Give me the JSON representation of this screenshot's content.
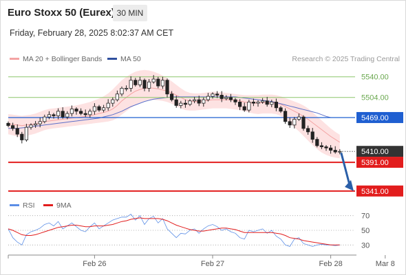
{
  "header": {
    "instrument": "Euro Stoxx 50 (Eurex)",
    "timeframe": "30 MIN",
    "datetime": "Friday, February 28, 2025 8:02:37 AM CET"
  },
  "legend": {
    "bollinger": "MA 20 + Bollinger Bands",
    "ma50": "MA 50",
    "copyright": "Research © 2025 Trading Central",
    "rsi": "RSI",
    "rsi_ma": "9MA"
  },
  "colors": {
    "bollinger_fill": "#fde2e2",
    "ma20": "#f4a3a3",
    "ma50": "#5b6fc9",
    "bull_candle": "#ffffff",
    "bear_candle": "#222222",
    "support_red": "#e21d1d",
    "pivot_blue": "#1f5fd1",
    "resistance_green": "#8cc56a",
    "current_price_bg": "#333333",
    "rsi_line": "#5b8ee6",
    "rsi_ma_line": "#e21d1d",
    "arrow": "#2a5fa8"
  },
  "chart_data": [
    {
      "type": "candlestick",
      "title": "Euro Stoxx 50 (Eurex)",
      "price_ylim": [
        5330,
        5560
      ],
      "levels": [
        {
          "label": "5540.00",
          "value": 5540.0,
          "kind": "resistance"
        },
        {
          "label": "5504.00",
          "value": 5504.0,
          "kind": "resistance"
        },
        {
          "label": "5469.00",
          "value": 5469.0,
          "kind": "pivot"
        },
        {
          "label": "5410.00",
          "value": 5410.0,
          "kind": "current"
        },
        {
          "label": "5391.00",
          "value": 5391.0,
          "kind": "support"
        },
        {
          "label": "5341.00",
          "value": 5341.0,
          "kind": "support"
        }
      ],
      "x_ticks": [
        "Feb 26",
        "Feb 27",
        "Feb 28",
        "Mar 8"
      ],
      "x_tick_bar_index": [
        19,
        45,
        71,
        83
      ],
      "forecast_arrow": {
        "from": 5410,
        "to": 5341
      },
      "close": [
        5455,
        5450,
        5440,
        5430,
        5452,
        5456,
        5458,
        5462,
        5470,
        5474,
        5472,
        5480,
        5470,
        5476,
        5484,
        5480,
        5476,
        5474,
        5480,
        5488,
        5482,
        5486,
        5494,
        5500,
        5510,
        5520,
        5520,
        5534,
        5526,
        5534,
        5520,
        5531,
        5536,
        5524,
        5534,
        5510,
        5500,
        5490,
        5494,
        5492,
        5498,
        5500,
        5494,
        5500,
        5506,
        5510,
        5508,
        5502,
        5504,
        5500,
        5496,
        5488,
        5482,
        5496,
        5494,
        5496,
        5498,
        5492,
        5496,
        5486,
        5480,
        5462,
        5456,
        5466,
        5470,
        5450,
        5444,
        5431,
        5420,
        5418,
        5416,
        5412,
        5409,
        5410
      ],
      "ma20": [
        5458,
        5457,
        5456,
        5455,
        5456,
        5457,
        5458,
        5460,
        5462,
        5463,
        5464,
        5465,
        5466,
        5467,
        5468,
        5469,
        5470,
        5471,
        5472,
        5474,
        5476,
        5478,
        5480,
        5484,
        5490,
        5498,
        5504,
        5510,
        5515,
        5518,
        5520,
        5521,
        5520,
        5519,
        5517,
        5515,
        5512,
        5508,
        5504,
        5500,
        5498,
        5497,
        5497,
        5498,
        5499,
        5500,
        5500,
        5500,
        5500,
        5500,
        5499,
        5498,
        5496,
        5495,
        5494,
        5494,
        5495,
        5495,
        5495,
        5494,
        5492,
        5488,
        5484,
        5480,
        5476,
        5471,
        5466,
        5460,
        5454,
        5448,
        5442,
        5436,
        5431,
        5426
      ],
      "bb_upper": [
        5475,
        5474,
        5473,
        5472,
        5473,
        5474,
        5476,
        5479,
        5482,
        5484,
        5485,
        5486,
        5487,
        5488,
        5489,
        5490,
        5492,
        5494,
        5496,
        5499,
        5502,
        5506,
        5511,
        5518,
        5526,
        5534,
        5540,
        5545,
        5549,
        5551,
        5552,
        5551,
        5549,
        5546,
        5542,
        5538,
        5532,
        5526,
        5520,
        5515,
        5512,
        5511,
        5511,
        5512,
        5513,
        5514,
        5514,
        5513,
        5512,
        5511,
        5510,
        5509,
        5508,
        5508,
        5508,
        5508,
        5509,
        5509,
        5509,
        5508,
        5506,
        5503,
        5500,
        5497,
        5494,
        5490,
        5485,
        5478,
        5471,
        5464,
        5457,
        5450,
        5444,
        5439
      ],
      "bb_lower": [
        5440,
        5438,
        5436,
        5435,
        5437,
        5439,
        5441,
        5444,
        5447,
        5449,
        5450,
        5451,
        5452,
        5453,
        5454,
        5455,
        5456,
        5457,
        5458,
        5459,
        5460,
        5461,
        5462,
        5464,
        5468,
        5474,
        5480,
        5486,
        5491,
        5495,
        5498,
        5500,
        5500,
        5499,
        5498,
        5496,
        5493,
        5489,
        5485,
        5482,
        5481,
        5481,
        5482,
        5483,
        5484,
        5485,
        5485,
        5485,
        5485,
        5484,
        5483,
        5482,
        5480,
        5478,
        5476,
        5475,
        5476,
        5476,
        5476,
        5475,
        5472,
        5466,
        5459,
        5452,
        5445,
        5437,
        5429,
        5421,
        5414,
        5408,
        5404,
        5401,
        5399,
        5398
      ],
      "ma50": [
        5450,
        5450,
        5450,
        5451,
        5452,
        5453,
        5454,
        5455,
        5456,
        5457,
        5458,
        5459,
        5460,
        5461,
        5462,
        5463,
        5464,
        5465,
        5466,
        5467,
        5468,
        5470,
        5472,
        5474,
        5477,
        5480,
        5484,
        5488,
        5491,
        5494,
        5497,
        5499,
        5501,
        5502,
        5503,
        5504,
        5505,
        5505,
        5505,
        5505,
        5505,
        5505,
        5505,
        5505,
        5505,
        5505,
        5505,
        5505,
        5505,
        5505,
        5505,
        5504,
        5503,
        5502,
        5501,
        5500,
        5499,
        5498,
        5497,
        5495,
        5493,
        5491,
        5489,
        5487,
        5485,
        5483,
        5481,
        5479,
        5477,
        5474,
        5471,
        5469,
        5469,
        5469
      ]
    },
    {
      "type": "line",
      "title": "RSI",
      "ylim": [
        20,
        80
      ],
      "y_ticks": [
        70,
        50,
        30
      ],
      "series": [
        {
          "name": "RSI",
          "values": [
            52,
            40,
            34,
            30,
            44,
            48,
            50,
            53,
            58,
            60,
            56,
            62,
            52,
            56,
            60,
            55,
            50,
            48,
            55,
            60,
            52,
            56,
            60,
            64,
            66,
            68,
            68,
            72,
            64,
            70,
            58,
            66,
            69,
            60,
            66,
            52,
            46,
            40,
            46,
            45,
            50,
            52,
            46,
            52,
            56,
            58,
            55,
            50,
            52,
            48,
            46,
            40,
            38,
            50,
            48,
            50,
            52,
            46,
            50,
            42,
            38,
            30,
            28,
            38,
            40,
            32,
            30,
            28,
            30,
            31,
            30,
            30,
            29,
            30
          ]
        },
        {
          "name": "9MA",
          "values": [
            52,
            50,
            47,
            44,
            43,
            43,
            44,
            46,
            48,
            50,
            52,
            54,
            55,
            56,
            57,
            57,
            56,
            55,
            55,
            56,
            56,
            56,
            57,
            58,
            60,
            62,
            63,
            65,
            66,
            67,
            66,
            66,
            66,
            66,
            65,
            63,
            60,
            57,
            55,
            53,
            51,
            50,
            49,
            49,
            50,
            51,
            52,
            53,
            53,
            52,
            51,
            49,
            47,
            47,
            47,
            47,
            47,
            47,
            47,
            46,
            45,
            43,
            40,
            39,
            38,
            36,
            35,
            34,
            33,
            32,
            31,
            30,
            30,
            30
          ]
        }
      ]
    }
  ]
}
